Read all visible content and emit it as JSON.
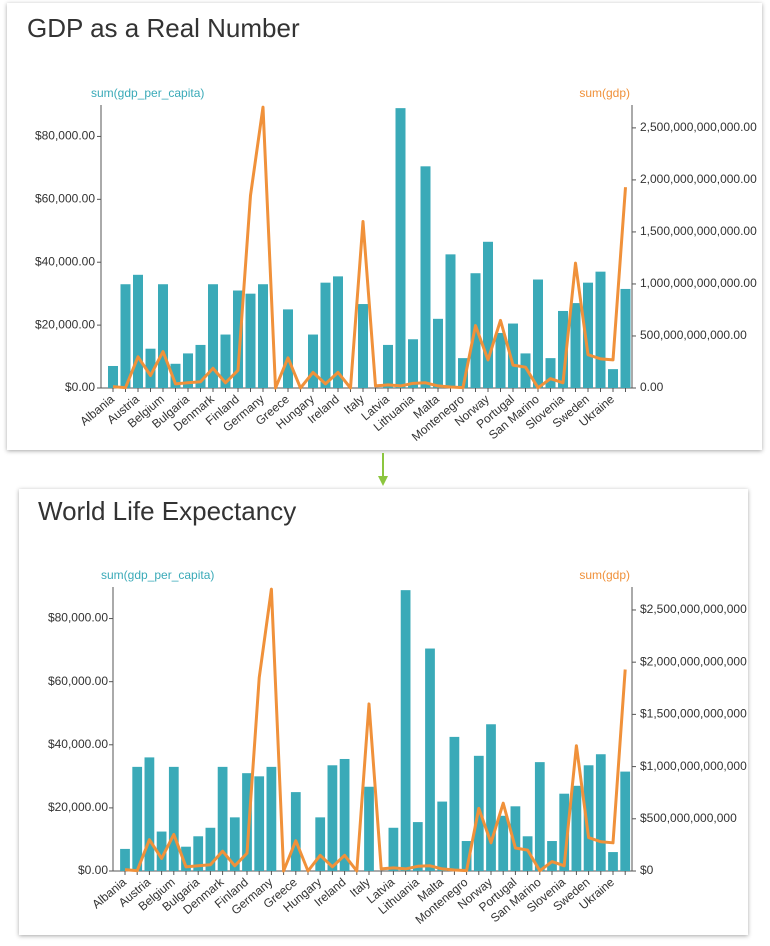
{
  "chart_data": [
    {
      "type": "bar-line",
      "title": "GDP as a Real Number",
      "categories": [
        "Albania",
        null,
        "Austria",
        null,
        "Belgium",
        null,
        "Bulgaria",
        null,
        "Denmark",
        null,
        "Finland",
        null,
        "Germany",
        null,
        "Greece",
        null,
        "Hungary",
        null,
        "Ireland",
        null,
        "Italy",
        null,
        "Latvia",
        null,
        "Lithuania",
        null,
        "Malta",
        null,
        "Montenegro",
        null,
        "Norway",
        null,
        "Portugal",
        null,
        "San Marino",
        null,
        "Slovenia",
        null,
        "Sweden",
        null,
        "Ukraine",
        null
      ],
      "series": [
        {
          "name": "sum(gdp_per_capita)",
          "color": "#3aaab8",
          "type": "bar",
          "values": [
            7000,
            33000,
            36000,
            12500,
            33000,
            7700,
            11000,
            13700,
            33000,
            17000,
            31000,
            30000,
            33000,
            0,
            25000,
            0,
            17000,
            33500,
            35500,
            0,
            26700,
            0,
            13700,
            89000,
            15500,
            70500,
            22000,
            42500,
            9500,
            36500,
            46500,
            17500,
            20500,
            11000,
            34500,
            9500,
            24500,
            27000,
            33500,
            37000,
            6000,
            31500
          ]
        },
        {
          "name": "sum(gdp)",
          "color": "#f0913a",
          "type": "line",
          "axis": "y2",
          "values": [
            13000000000.0,
            3000000000.0,
            300000000000.0,
            120000000000.0,
            350000000000.0,
            40000000000.0,
            50000000000.0,
            60000000000.0,
            190000000000.0,
            50000000000.0,
            170000000000.0,
            1850000000000.0,
            2700000000000.0,
            0,
            290000000000.0,
            0,
            150000000000.0,
            40000000000.0,
            150000000000.0,
            0,
            1600000000000.0,
            20000000000.0,
            30000000000.0,
            20000000000.0,
            45000000000.0,
            50000000000.0,
            20000000000.0,
            10000000000.0,
            4000000000.0,
            600000000000.0,
            270000000000.0,
            650000000000.0,
            220000000000.0,
            200000000000.0,
            2000000000.0,
            90000000000.0,
            50000000000.0,
            1200000000000.0,
            320000000000.0,
            280000000000.0,
            270000000000.0,
            1930000000000.0
          ]
        }
      ],
      "ylim": [
        0,
        90000
      ],
      "yticks": [
        {
          "value": 0,
          "label": "$0.00"
        },
        {
          "value": 20000,
          "label": "$20,000.00"
        },
        {
          "value": 40000,
          "label": "$40,000.00"
        },
        {
          "value": 60000,
          "label": "$60,000.00"
        },
        {
          "value": 80000,
          "label": "$80,000.00"
        }
      ],
      "y2lim": [
        0,
        2720000000000.0
      ],
      "y2ticks": [
        {
          "value": 0,
          "label": "0.00"
        },
        {
          "value": 500000000000.0,
          "label": "500,000,000,000.00"
        },
        {
          "value": 1000000000000.0,
          "label": "1,000,000,000,000.00"
        },
        {
          "value": 1500000000000.0,
          "label": "1,500,000,000,000.00"
        },
        {
          "value": 2000000000000.0,
          "label": "2,000,000,000,000.00"
        },
        {
          "value": 2500000000000.0,
          "label": "2,500,000,000,000.00"
        }
      ],
      "grid": false
    },
    {
      "type": "bar-line",
      "title": "World Life Expectancy",
      "categories": [
        "Albania",
        null,
        "Austria",
        null,
        "Belgium",
        null,
        "Bulgaria",
        null,
        "Denmark",
        null,
        "Finland",
        null,
        "Germany",
        null,
        "Greece",
        null,
        "Hungary",
        null,
        "Ireland",
        null,
        "Italy",
        null,
        "Latvia",
        null,
        "Lithuania",
        null,
        "Malta",
        null,
        "Montenegro",
        null,
        "Norway",
        null,
        "Portugal",
        null,
        "San Marino",
        null,
        "Slovenia",
        null,
        "Sweden",
        null,
        "Ukraine",
        null
      ],
      "series": [
        {
          "name": "sum(gdp_per_capita)",
          "color": "#3aaab8",
          "type": "bar",
          "values": [
            7000,
            33000,
            36000,
            12500,
            33000,
            7700,
            11000,
            13700,
            33000,
            17000,
            31000,
            30000,
            33000,
            0,
            25000,
            0,
            17000,
            33500,
            35500,
            0,
            26700,
            0,
            13700,
            89000,
            15500,
            70500,
            22000,
            42500,
            9500,
            36500,
            46500,
            17500,
            20500,
            11000,
            34500,
            9500,
            24500,
            27000,
            33500,
            37000,
            6000,
            31500
          ]
        },
        {
          "name": "sum(gdp)",
          "color": "#f0913a",
          "type": "line",
          "axis": "y2",
          "values": [
            13000000000.0,
            3000000000.0,
            300000000000.0,
            120000000000.0,
            350000000000.0,
            40000000000.0,
            50000000000.0,
            60000000000.0,
            190000000000.0,
            50000000000.0,
            170000000000.0,
            1850000000000.0,
            2700000000000.0,
            0,
            290000000000.0,
            0,
            150000000000.0,
            40000000000.0,
            150000000000.0,
            0,
            1600000000000.0,
            20000000000.0,
            30000000000.0,
            20000000000.0,
            45000000000.0,
            50000000000.0,
            20000000000.0,
            10000000000.0,
            4000000000.0,
            600000000000.0,
            270000000000.0,
            650000000000.0,
            220000000000.0,
            200000000000.0,
            2000000000.0,
            90000000000.0,
            50000000000.0,
            1200000000000.0,
            320000000000.0,
            280000000000.0,
            270000000000.0,
            1930000000000.0
          ]
        }
      ],
      "ylim": [
        0,
        90000
      ],
      "yticks": [
        {
          "value": 0,
          "label": "$0.00"
        },
        {
          "value": 20000,
          "label": "$20,000.00"
        },
        {
          "value": 40000,
          "label": "$40,000.00"
        },
        {
          "value": 60000,
          "label": "$60,000.00"
        },
        {
          "value": 80000,
          "label": "$80,000.00"
        }
      ],
      "y2lim": [
        0,
        2720000000000.0
      ],
      "y2ticks": [
        {
          "value": 0,
          "label": "$0"
        },
        {
          "value": 500000000000.0,
          "label": "$500,000,000,000"
        },
        {
          "value": 1000000000000.0,
          "label": "$1,000,000,000,000"
        },
        {
          "value": 1500000000000.0,
          "label": "$1,500,000,000,000"
        },
        {
          "value": 2000000000000.0,
          "label": "$2,000,000,000,000"
        },
        {
          "value": 2500000000000.0,
          "label": "$2,500,000,000,000"
        }
      ],
      "grid": false
    }
  ]
}
